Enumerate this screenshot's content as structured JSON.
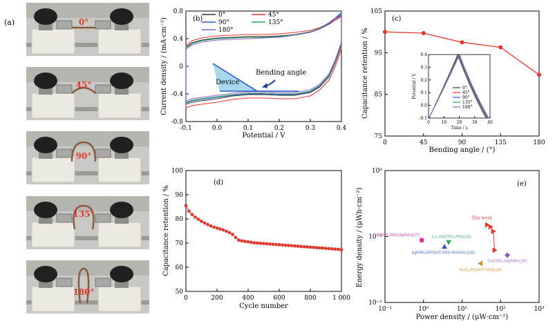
{
  "panel_a": {
    "label": "(a)",
    "photos": [
      {
        "angle_label": "0°"
      },
      {
        "angle_label": "45°"
      },
      {
        "angle_label": "90°"
      },
      {
        "angle_label": "135°"
      },
      {
        "angle_label": "180°"
      }
    ]
  },
  "colors": {
    "s0": "#333333",
    "s45": "#e8302f",
    "s90": "#2e57c8",
    "s135": "#2fa15a",
    "s180": "#8d5bc6",
    "red_marker": "#e03a30",
    "photo_bg": "#c8c8c4",
    "block": "#ece9e2",
    "knob": "#202020"
  },
  "chart_data": [
    {
      "panel": "(b)",
      "type": "line",
      "xlabel": "Potential / V",
      "ylabel": "Current density / (mA·cm⁻²)",
      "xlim": [
        -0.1,
        0.4
      ],
      "ylim": [
        -0.8,
        0.8
      ],
      "xticks": [
        "-0.1",
        "0.0",
        "0.1",
        "0.2",
        "0.3",
        "0.4"
      ],
      "yticks": [
        "-0.8",
        "-0.4",
        "0",
        "0.4",
        "0.8"
      ],
      "legend": "top-left",
      "inset": {
        "device_label": "Device",
        "bending_label": "Bending angle"
      },
      "cv_x": [
        -0.1,
        -0.08,
        -0.05,
        0.0,
        0.05,
        0.1,
        0.15,
        0.2,
        0.25,
        0.3,
        0.33,
        0.36,
        0.38,
        0.4
      ],
      "series": [
        {
          "name": "0°",
          "upper": [
            0.28,
            0.34,
            0.38,
            0.41,
            0.42,
            0.43,
            0.43,
            0.44,
            0.46,
            0.5,
            0.54,
            0.61,
            0.67,
            0.74
          ],
          "lower": [
            -0.55,
            -0.52,
            -0.5,
            -0.47,
            -0.43,
            -0.41,
            -0.41,
            -0.42,
            -0.42,
            -0.38,
            -0.3,
            -0.15,
            0.05,
            0.3
          ]
        },
        {
          "name": "45°",
          "upper": [
            0.3,
            0.37,
            0.41,
            0.44,
            0.45,
            0.46,
            0.46,
            0.47,
            0.49,
            0.52,
            0.56,
            0.62,
            0.67,
            0.72
          ],
          "lower": [
            -0.6,
            -0.57,
            -0.55,
            -0.52,
            -0.48,
            -0.46,
            -0.46,
            -0.47,
            -0.47,
            -0.43,
            -0.34,
            -0.2,
            0.0,
            0.25
          ]
        },
        {
          "name": "90°",
          "upper": [
            0.27,
            0.33,
            0.37,
            0.4,
            0.41,
            0.42,
            0.42,
            0.43,
            0.46,
            0.5,
            0.55,
            0.63,
            0.7,
            0.78
          ],
          "lower": [
            -0.53,
            -0.5,
            -0.48,
            -0.45,
            -0.42,
            -0.4,
            -0.4,
            -0.41,
            -0.41,
            -0.37,
            -0.29,
            -0.14,
            0.06,
            0.32
          ]
        },
        {
          "name": "135°",
          "upper": [
            0.27,
            0.33,
            0.37,
            0.4,
            0.41,
            0.42,
            0.42,
            0.43,
            0.46,
            0.5,
            0.55,
            0.62,
            0.69,
            0.76
          ],
          "lower": [
            -0.52,
            -0.49,
            -0.47,
            -0.44,
            -0.41,
            -0.39,
            -0.39,
            -0.4,
            -0.4,
            -0.36,
            -0.28,
            -0.13,
            0.07,
            0.33
          ]
        },
        {
          "name": "180°",
          "upper": [
            0.25,
            0.31,
            0.35,
            0.38,
            0.39,
            0.4,
            0.41,
            0.42,
            0.45,
            0.49,
            0.54,
            0.62,
            0.69,
            0.75
          ],
          "lower": [
            -0.5,
            -0.47,
            -0.45,
            -0.42,
            -0.39,
            -0.37,
            -0.37,
            -0.38,
            -0.38,
            -0.34,
            -0.26,
            -0.11,
            0.09,
            0.35
          ]
        }
      ]
    },
    {
      "panel": "(c)",
      "type": "line",
      "xlabel": "Bending angle / (°)",
      "ylabel": "Capacitance retention / %",
      "xlim": [
        0,
        180
      ],
      "ylim": [
        75,
        105
      ],
      "xticks": [
        "0",
        "45",
        "90",
        "135",
        "180"
      ],
      "yticks": [
        "75",
        "85",
        "95",
        "105"
      ],
      "x": [
        0,
        45,
        90,
        135,
        180
      ],
      "values": [
        100,
        99.7,
        97.5,
        96.3,
        89.7
      ],
      "inset": {
        "type": "line",
        "xlabel": "Time / s",
        "ylabel": "Potential / V",
        "xlim": [
          0,
          40
        ],
        "ylim": [
          -0.1,
          0.4
        ],
        "xticks": [
          "0",
          "10",
          "20",
          "30",
          "40"
        ],
        "yticks": [
          "-0.1",
          "0.0",
          "0.1",
          "0.2",
          "0.3",
          "0.4"
        ],
        "series": [
          {
            "name": "0°",
            "peak": 19.0,
            "end": 37.5
          },
          {
            "name": "45°",
            "peak": 19.3,
            "end": 37.8
          },
          {
            "name": "90°",
            "peak": 19.6,
            "end": 38.3
          },
          {
            "name": "135°",
            "peak": 19.9,
            "end": 38.8
          },
          {
            "name": "180°",
            "peak": 20.3,
            "end": 39.2
          }
        ]
      }
    },
    {
      "panel": "(d)",
      "type": "scatter",
      "xlabel": "Cycle number",
      "ylabel": "Capacitance retention / %",
      "xlim": [
        0,
        1000
      ],
      "ylim": [
        50,
        100
      ],
      "xticks": [
        "0",
        "200",
        "400",
        "600",
        "800",
        "1 000"
      ],
      "yticks": [
        "50",
        "60",
        "70",
        "80",
        "90",
        "100"
      ],
      "x": [
        0,
        20,
        40,
        60,
        80,
        100,
        120,
        140,
        160,
        180,
        200,
        220,
        240,
        260,
        280,
        300,
        320,
        340,
        360,
        380,
        400,
        420,
        440,
        460,
        480,
        500,
        520,
        540,
        560,
        580,
        600,
        620,
        640,
        660,
        680,
        700,
        720,
        740,
        760,
        780,
        800,
        820,
        840,
        860,
        880,
        900,
        920,
        940,
        960,
        980,
        1000
      ],
      "values": [
        85.5,
        83.2,
        81.8,
        80.7,
        79.8,
        79.0,
        78.3,
        77.7,
        77.1,
        76.6,
        76.2,
        75.8,
        75.4,
        74.9,
        74.3,
        73.6,
        72.3,
        71.2,
        70.9,
        70.7,
        70.5,
        70.3,
        70.1,
        70.0,
        69.9,
        69.8,
        69.7,
        69.6,
        69.5,
        69.4,
        69.3,
        69.2,
        69.1,
        69.0,
        68.9,
        68.8,
        68.7,
        68.6,
        68.5,
        68.4,
        68.3,
        68.2,
        68.1,
        68.0,
        67.9,
        67.8,
        67.7,
        67.6,
        67.5,
        67.4,
        67.2
      ]
    },
    {
      "panel": "(e)",
      "type": "scatter",
      "xlabel": "Power density / (μW·cm⁻²)",
      "ylabel": "Energy density / (μWh·cm⁻²)",
      "xscale": "log",
      "yscale": "log",
      "xlim": [
        0.1,
        1000
      ],
      "ylim": [
        0.01,
        1
      ],
      "xticks": [
        "10⁻¹",
        "10⁰",
        "10¹",
        "10²",
        "10³"
      ],
      "yticks": [
        "10⁻²",
        "10⁻¹",
        "10⁰"
      ],
      "this_work": {
        "label": "This work",
        "x": [
          45,
          55,
          65,
          70
        ],
        "y": [
          0.15,
          0.14,
          0.12,
          0.062
        ]
      },
      "references": [
        {
          "label": "PEDOT:PSS/AgNFs[27]",
          "x": 0.9,
          "y": 0.088,
          "marker": "circle",
          "color": "#d33a9d"
        },
        {
          "label": "Cu₃(HHTP)₂/PPy[26]",
          "x": 4.5,
          "y": 0.082,
          "marker": "triangle-down",
          "color": "#2fa15a"
        },
        {
          "label": "AgNWs/PEDOT:PSS-Ni(OH)₂[28]",
          "x": 3.5,
          "y": 0.07,
          "marker": "triangle-up",
          "color": "#2e57c8"
        },
        {
          "label": "RuO₂/PEDOT:PSS[29]",
          "x": 30,
          "y": 0.039,
          "marker": "triangle-left",
          "color": "#d98b2b"
        },
        {
          "label": "Co(OH)₂/AgNWs[30]",
          "x": 150,
          "y": 0.052,
          "marker": "diamond",
          "color": "#8d5bc6"
        }
      ]
    }
  ]
}
